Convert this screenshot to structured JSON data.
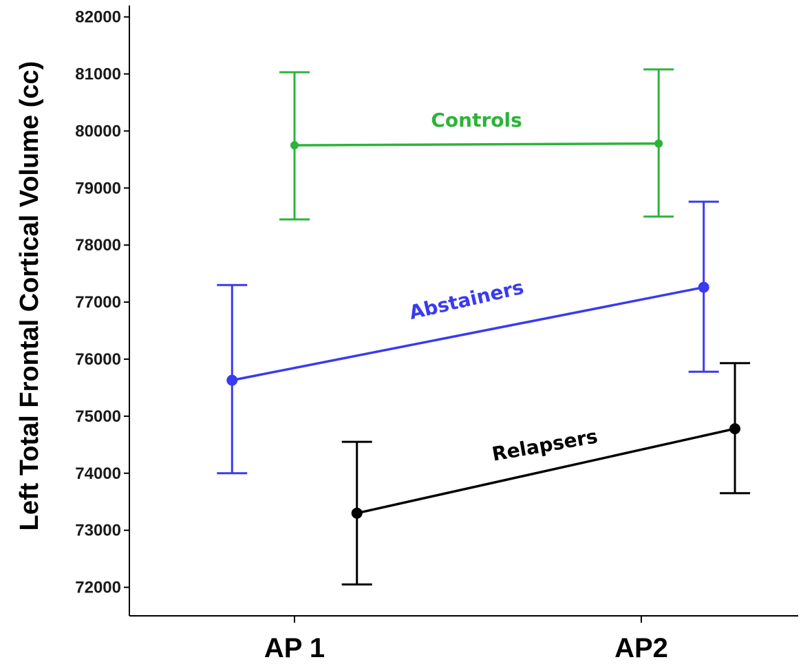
{
  "chart_data": {
    "type": "line",
    "categories": [
      "AP 1",
      "AP2"
    ],
    "ylabel": "Left Total Frontal Cortical Volume (cc)",
    "ylim": [
      71500,
      82200
    ],
    "yticks": [
      72000,
      73000,
      74000,
      75000,
      76000,
      77000,
      78000,
      79000,
      80000,
      81000,
      82000
    ],
    "grid": false,
    "series": [
      {
        "name": "Controls",
        "color": "#2db33a",
        "x_offset": [
          0,
          0.05
        ],
        "values": [
          79750,
          79780
        ],
        "lower": [
          78450,
          78500
        ],
        "upper": [
          81030,
          81080
        ]
      },
      {
        "name": "Abstainers",
        "color": "#3a3af0",
        "x_offset": [
          -0.18,
          0.18
        ],
        "values": [
          75630,
          77260
        ],
        "lower": [
          74000,
          75780
        ],
        "upper": [
          77300,
          78760
        ]
      },
      {
        "name": "Relapsers",
        "color": "#000000",
        "x_offset": [
          0.18,
          0.27
        ],
        "values": [
          73300,
          74780
        ],
        "lower": [
          72050,
          73650
        ],
        "upper": [
          74550,
          75930
        ]
      }
    ]
  }
}
